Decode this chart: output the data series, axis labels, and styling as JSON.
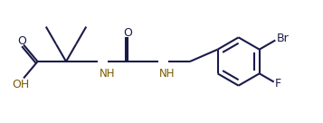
{
  "background": "#ffffff",
  "bond_color": "#1a1a4a",
  "heteroatom_color": "#7a5a00",
  "label_color": "#1a1a4a",
  "line_width": 1.5,
  "figsize": [
    3.57,
    1.36
  ],
  "dpi": 100,
  "xlim": [
    0,
    9.5
  ],
  "ylim": [
    0,
    3.6
  ]
}
